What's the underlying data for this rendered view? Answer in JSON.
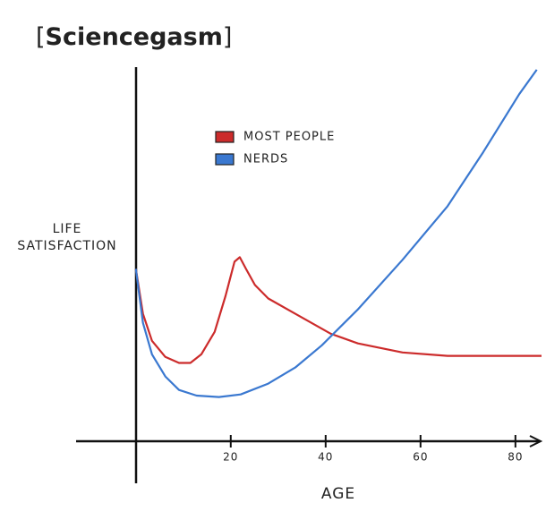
{
  "header": [
    "[",
    "Sciencegasm",
    "]"
  ],
  "chart_data": {
    "type": "line",
    "xlabel": "AGE",
    "ylabel": [
      "LIFE",
      "SATISFACTION"
    ],
    "xlim": [
      -12.6,
      85.5
    ],
    "ylim": [
      -11,
      100
    ],
    "xticks": [
      20,
      40,
      60,
      80
    ],
    "series": [
      {
        "name": "MOST PEOPLE",
        "color": "#cc2b2b",
        "x": [
          0,
          1.5,
          3.4,
          6.2,
          9.1,
          11.5,
          13.8,
          16.6,
          18.9,
          20.8,
          21.9,
          23.2,
          25.1,
          27.9,
          33.6,
          41.1,
          46.8,
          56.2,
          65.7,
          75.1,
          85.5
        ],
        "values": [
          46.2,
          34.2,
          27.0,
          22.7,
          21.1,
          21.1,
          23.4,
          29.4,
          39.0,
          48.1,
          49.3,
          46.2,
          41.9,
          38.3,
          34.2,
          28.9,
          26.3,
          23.9,
          23.0,
          23.0,
          23.0
        ]
      },
      {
        "name": "NERDS",
        "color": "#3a78d0",
        "x": [
          0,
          1.5,
          3.4,
          6.2,
          9.1,
          12.8,
          17.5,
          22.1,
          27.9,
          33.6,
          39.2,
          46.8,
          56.2,
          65.7,
          73.2,
          80.8,
          84.5
        ],
        "values": [
          46.2,
          31.8,
          23.4,
          17.5,
          13.9,
          12.4,
          12.0,
          12.7,
          15.6,
          19.9,
          25.8,
          35.4,
          48.6,
          62.9,
          77.3,
          92.8,
          99.3
        ]
      }
    ]
  }
}
